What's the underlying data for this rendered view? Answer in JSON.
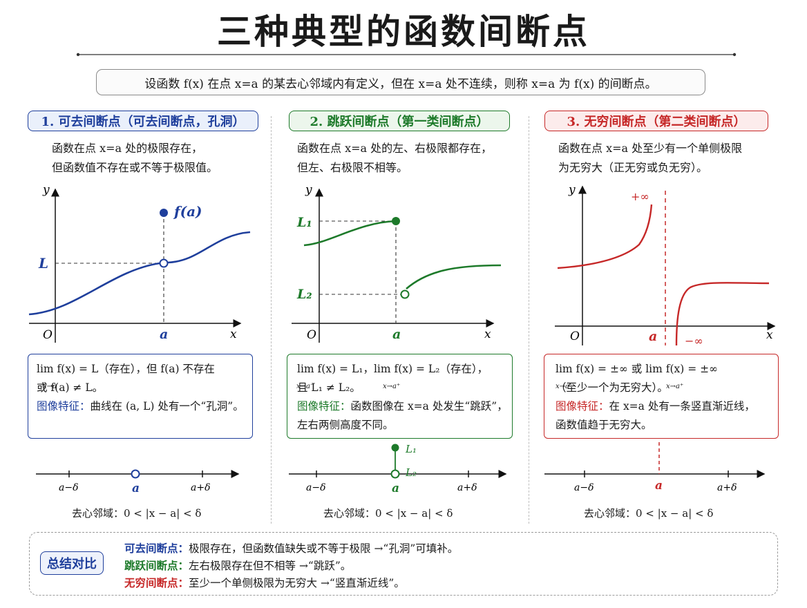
{
  "title": "三种典型的函数间断点",
  "definition": "设函数 f(x) 在点 x=a 的某去心邻域内有定义，但在 x=a 处不连续，则称 x=a 为 f(x) 的间断点。",
  "colors": {
    "blue": "#1f3f9c",
    "green": "#1d7a2a",
    "red": "#c62828",
    "gray": "#9a9a9a"
  },
  "panels": [
    {
      "heading": "1. 可去间断点（可去间断点，孔洞）",
      "desc": [
        "函数在点 x=a 处的极限存在，",
        "但函数值不存在或不等于极限值。"
      ],
      "graph": {
        "y": "y",
        "x": "x",
        "origin": "O",
        "a": "a",
        "point_label": "f(a)",
        "limit_label": "L"
      },
      "formula": [
        "lim f(x) = L（存在），但 f(a) 不存在",
        "或 f(a) ≠ L。"
      ],
      "lim_sub": "x→a",
      "feature_key": "图像特征：",
      "feature": "曲线在 (a, L) 处有一个“孔洞”。",
      "number_line": {
        "left": "a−δ",
        "mid": "a",
        "right": "a+δ"
      },
      "caption": "去心邻域：0 < |x − a| < δ"
    },
    {
      "heading": "2. 跳跃间断点（第一类间断点）",
      "desc": [
        "函数在点 x=a 处的左、右极限都存在，",
        "但左、右极限不相等。"
      ],
      "graph": {
        "y": "y",
        "x": "x",
        "origin": "O",
        "a": "a",
        "l1": "L₁",
        "l2": "L₂"
      },
      "formula": [
        "lim f(x) = L₁，lim f(x) = L₂（存在），",
        "且 L₁ ≠ L₂。"
      ],
      "lim_sub_left": "x→a⁻",
      "lim_sub_right": "x→a⁺",
      "feature_key": "图像特征：",
      "feature": [
        "函数图像在 x=a 处发生“跳跃”，",
        "左右两侧高度不同。"
      ],
      "number_line": {
        "left": "a−δ",
        "mid": "a",
        "right": "a+δ",
        "l1": "L₁",
        "l2": "L₂"
      },
      "caption": "去心邻域：0 < |x − a| < δ"
    },
    {
      "heading": "3. 无穷间断点（第二类间断点）",
      "desc": [
        "函数在点 x=a 处至少有一个单侧极限",
        "为无穷大（正无穷或负无穷）。"
      ],
      "graph": {
        "y": "y",
        "x": "x",
        "origin": "O",
        "a": "a",
        "pos_inf": "+∞",
        "neg_inf": "−∞"
      },
      "formula": [
        "lim f(x) = ±∞ 或 lim f(x) = ±∞",
        "（至少一个为无穷大）。"
      ],
      "lim_sub_left": "x→a⁻",
      "lim_sub_right": "x→a⁺",
      "feature_key": "图像特征：",
      "feature": [
        "在 x=a 处有一条竖直渐近线，",
        "函数值趋于无穷大。"
      ],
      "number_line": {
        "left": "a−δ",
        "mid": "a",
        "right": "a+δ"
      },
      "caption": "去心邻域：0 < |x − a| < δ"
    }
  ],
  "summary": {
    "tag": "总结对比",
    "rows": [
      {
        "key": "可去间断点：",
        "text": "极限存在，但函数值缺失或不等于极限 →“孔洞”可填补。"
      },
      {
        "key": "跳跃间断点：",
        "text": "左右极限存在但不相等 →“跳跃”。"
      },
      {
        "key": "无穷间断点：",
        "text": "至少一个单侧极限为无穷大 →“竖直渐近线”。"
      }
    ]
  }
}
